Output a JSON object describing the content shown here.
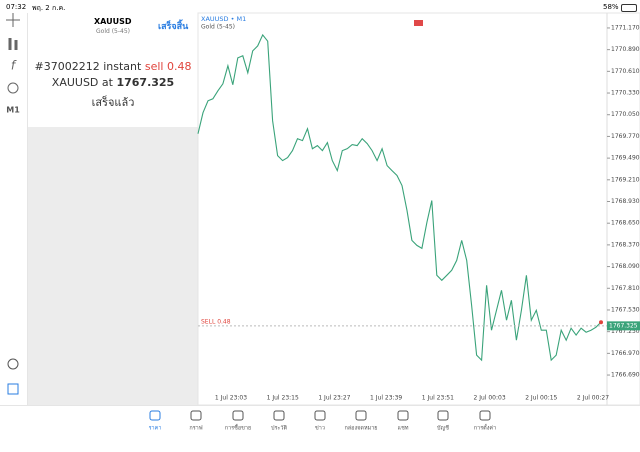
{
  "status": {
    "time": "07:32",
    "date": "พฤ. 2 ก.ค.",
    "battery": "58%"
  },
  "toolbar": {
    "timeframe": "M1"
  },
  "panel": {
    "symbol": "XAUUSD",
    "description": "Gold (5-45)",
    "done_button": "เสร็จสิ้น",
    "order": "#37002212 instant",
    "side": "sell 0.48",
    "line2": "XAUUSD at",
    "price": "1767.325",
    "result": "เสร็จแล้ว"
  },
  "chart": {
    "type": "line",
    "symbol": "XAUUSD • M1",
    "description": "Gold (5-45)",
    "color": "#3aa37a",
    "values": [
      1769.805,
      1770.076,
      1770.23,
      1770.256,
      1770.359,
      1770.449,
      1770.681,
      1770.436,
      1770.784,
      1770.81,
      1770.591,
      1770.874,
      1770.938,
      1771.08,
      1770.999,
      1769.973,
      1769.522,
      1769.458,
      1769.497,
      1769.587,
      1769.741,
      1769.716,
      1769.87,
      1769.612,
      1769.651,
      1769.587,
      1769.69,
      1769.458,
      1769.329,
      1769.587,
      1769.612,
      1769.664,
      1769.651,
      1769.741,
      1769.677,
      1769.587,
      1769.458,
      1769.612,
      1769.394,
      1769.329,
      1769.265,
      1769.136,
      1768.814,
      1768.428,
      1768.363,
      1768.325,
      1768.66,
      1768.943,
      1767.977,
      1767.913,
      1767.977,
      1768.042,
      1768.17,
      1768.428,
      1768.17,
      1767.591,
      1766.948,
      1766.883,
      1767.848,
      1767.269,
      1767.526,
      1767.784,
      1767.398,
      1767.655,
      1767.14,
      1767.526,
      1767.977,
      1767.398,
      1767.526,
      1767.269,
      1767.269,
      1766.883,
      1766.948,
      1767.269,
      1767.14,
      1767.295,
      1767.205,
      1767.295,
      1767.243,
      1767.269,
      1767.308,
      1767.372
    ],
    "ylim": [
      1766.497,
      1771.363
    ],
    "yticks": [
      {
        "value": 1771.17,
        "label": "1771.170"
      },
      {
        "value": 1770.89,
        "label": "1770.890"
      },
      {
        "value": 1770.61,
        "label": "1770.610"
      },
      {
        "value": 1770.33,
        "label": "1770.330"
      },
      {
        "value": 1770.05,
        "label": "1770.050"
      },
      {
        "value": 1769.77,
        "label": "1769.770"
      },
      {
        "value": 1769.49,
        "label": "1769.490"
      },
      {
        "value": 1769.21,
        "label": "1769.210"
      },
      {
        "value": 1768.93,
        "label": "1768.930"
      },
      {
        "value": 1768.65,
        "label": "1768.650"
      },
      {
        "value": 1768.37,
        "label": "1768.370"
      },
      {
        "value": 1768.09,
        "label": "1768.090"
      },
      {
        "value": 1767.81,
        "label": "1767.810"
      },
      {
        "value": 1767.53,
        "label": "1767.530"
      },
      {
        "value": 1767.25,
        "label": "1767.250"
      },
      {
        "value": 1766.97,
        "label": "1766.970"
      },
      {
        "value": 1766.69,
        "label": "1766.690"
      }
    ],
    "time_labels": [
      "1 Jul 23:03",
      "1 Jul 23:15",
      "1 Jul 23:27",
      "1 Jul 23:39",
      "1 Jul 23:51",
      "2 Jul 00:03",
      "2 Jul 00:15",
      "2 Jul 00:27"
    ],
    "sell_label": "SELL 0.48",
    "sell_price": 1767.325
  },
  "nav": [
    "ราคา",
    "กราฟ",
    "การซื้อขาย",
    "ประวัติ",
    "ข่าว",
    "กล่องจดหมาย",
    "แชท",
    "บัญชี",
    "การตั้งค่า"
  ]
}
